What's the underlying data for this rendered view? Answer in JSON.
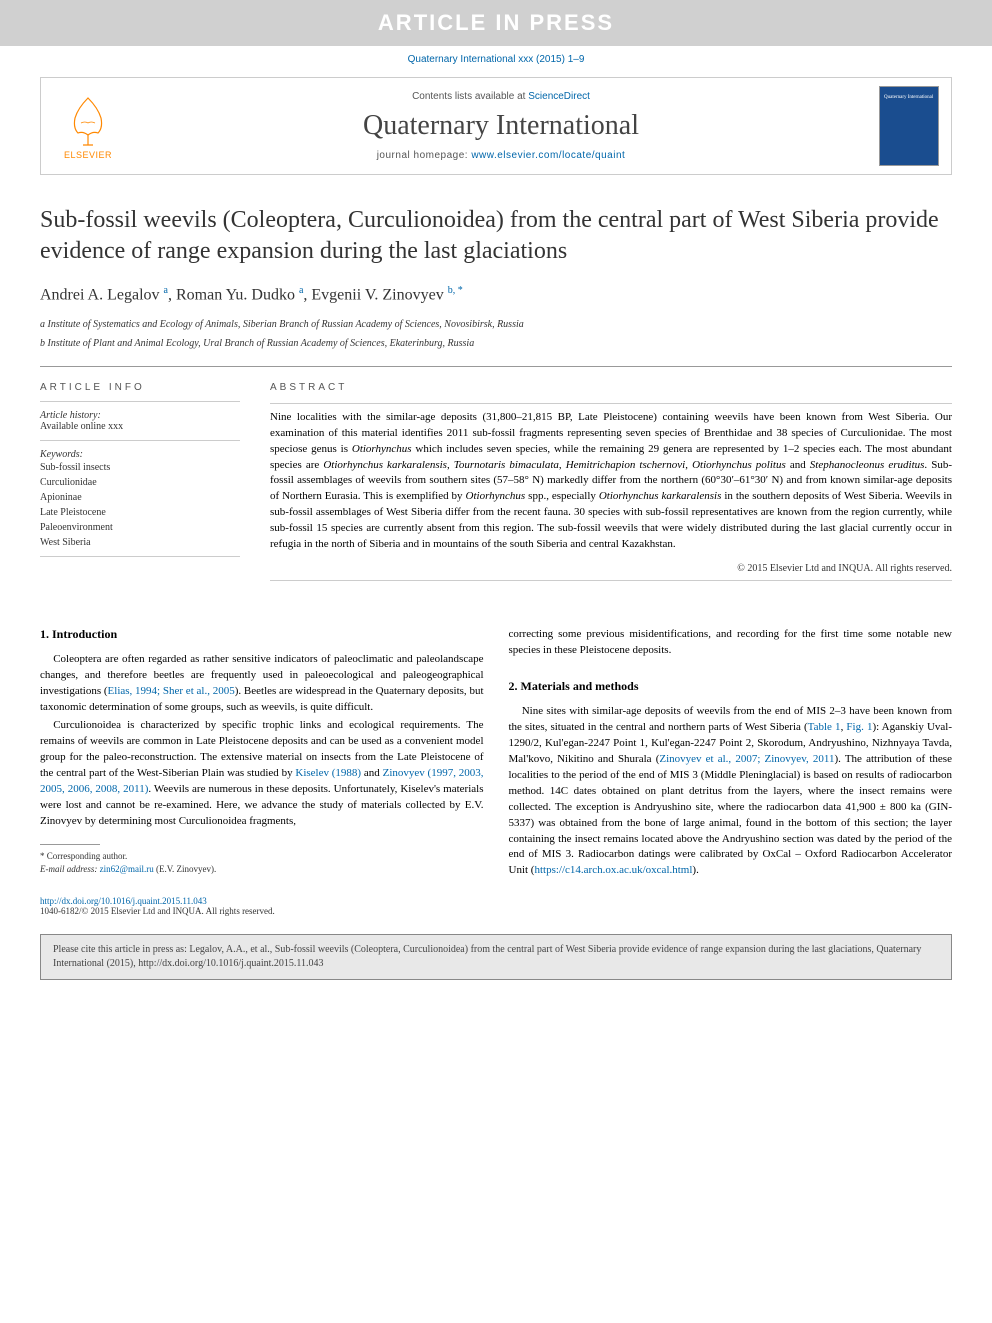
{
  "banner": "ARTICLE IN PRESS",
  "journal_ref": "Quaternary International xxx (2015) 1–9",
  "header": {
    "contents_prefix": "Contents lists available at ",
    "contents_link": "ScienceDirect",
    "journal_name": "Quaternary International",
    "homepage_prefix": "journal homepage: ",
    "homepage_url": "www.elsevier.com/locate/quaint",
    "publisher": "ELSEVIER"
  },
  "article": {
    "title": "Sub-fossil weevils (Coleoptera, Curculionoidea) from the central part of West Siberia provide evidence of range expansion during the last glaciations",
    "authors_html": "Andrei A. Legalov <sup>a</sup>, Roman Yu. Dudko <sup>a</sup>, Evgenii V. Zinovyev <sup>b, *</sup>",
    "affiliations": [
      "a Institute of Systematics and Ecology of Animals, Siberian Branch of Russian Academy of Sciences, Novosibirsk, Russia",
      "b Institute of Plant and Animal Ecology, Ural Branch of Russian Academy of Sciences, Ekaterinburg, Russia"
    ]
  },
  "info": {
    "header": "ARTICLE INFO",
    "history_label": "Article history:",
    "history_text": "Available online xxx",
    "keywords_label": "Keywords:",
    "keywords": [
      "Sub-fossil insects",
      "Curculionidae",
      "Apioninae",
      "Late Pleistocene",
      "Paleoenvironment",
      "West Siberia"
    ]
  },
  "abstract": {
    "header": "ABSTRACT",
    "text": "Nine localities with the similar-age deposits (31,800–21,815 BP, Late Pleistocene) containing weevils have been known from West Siberia. Our examination of this material identifies 2011 sub-fossil fragments representing seven species of Brenthidae and 38 species of Curculionidae. The most speciose genus is Otiorhynchus which includes seven species, while the remaining 29 genera are represented by 1–2 species each. The most abundant species are Otiorhynchus karkaralensis, Tournotaris bimaculata, Hemitrichapion tschernovi, Otiorhynchus politus and Stephanocleonus eruditus. Sub-fossil assemblages of weevils from southern sites (57–58° N) markedly differ from the northern (60°30′–61°30′ N) and from known similar-age deposits of Northern Eurasia. This is exemplified by Otiorhynchus spp., especially Otiorhynchus karkaralensis in the southern deposits of West Siberia. Weevils in sub-fossil assemblages of West Siberia differ from the recent fauna. 30 species with sub-fossil representatives are known from the region currently, while sub-fossil 15 species are currently absent from this region. The sub-fossil weevils that were widely distributed during the last glacial currently occur in refugia in the north of Siberia and in mountains of the south Siberia and central Kazakhstan.",
    "copyright": "© 2015 Elsevier Ltd and INQUA. All rights reserved."
  },
  "sections": {
    "intro_head": "1. Introduction",
    "intro_p1_a": "Coleoptera are often regarded as rather sensitive indicators of paleoclimatic and paleolandscape changes, and therefore beetles are frequently used in paleoecological and paleogeographical investigations (",
    "intro_p1_ref": "Elias, 1994; Sher et al., 2005",
    "intro_p1_b": "). Beetles are widespread in the Quaternary deposits, but taxonomic determination of some groups, such as weevils, is quite difficult.",
    "intro_p2_a": "Curculionoidea is characterized by specific trophic links and ecological requirements. The remains of weevils are common in Late Pleistocene deposits and can be used as a convenient model group for the paleo-reconstruction. The extensive material on insects from the Late Pleistocene of the central part of the West-Siberian Plain was studied by ",
    "intro_p2_ref1": "Kiselev (1988)",
    "intro_p2_mid": " and ",
    "intro_p2_ref2": "Zinovyev (1997, 2003, 2005, 2006, 2008, 2011)",
    "intro_p2_b": ". Weevils are numerous in these deposits. Unfortunately, Kiselev's materials were lost and cannot be re-examined. Here, we advance the study of materials collected by E.V. Zinovyev by determining most Curculionoidea fragments, ",
    "intro_p2_cont": "correcting some previous misidentifications, and recording for the first time some notable new species in these Pleistocene deposits.",
    "methods_head": "2. Materials and methods",
    "methods_p1_a": "Nine sites with similar-age deposits of weevils from the end of MIS 2–3 have been known from the sites, situated in the central and northern parts of West Siberia (",
    "methods_p1_ref1": "Table 1",
    "methods_p1_mid1": ", ",
    "methods_p1_ref2": "Fig. 1",
    "methods_p1_b": "): Aganskiy Uval-1290/2, Kul'egan-2247 Point 1, Kul'egan-2247 Point 2, Skorodum, Andryushino, Nizhnyaya Tavda, Mal'kovo, Nikitino and Shurala (",
    "methods_p1_ref3": "Zinovyev et al., 2007; Zinovyev, 2011",
    "methods_p1_c": "). The attribution of these localities to the period of the end of MIS 3 (Middle Pleninglacial) is based on results of radiocarbon method. 14C dates obtained on plant detritus from the layers, where the insect remains were collected. The exception is Andryushino site, where the radiocarbon data 41,900 ± 800 ka (GIN-5337) was obtained from the bone of large animal, found in the bottom of this section; the layer containing the insect remains located above the Andryushino section was dated by the period of the end of MIS 3. Radiocarbon datings were calibrated by OxCal – Oxford Radiocarbon Accelerator Unit (",
    "methods_p1_ref4": "https://c14.arch.ox.ac.uk/oxcal.html",
    "methods_p1_d": ")."
  },
  "footnote": {
    "corr": "* Corresponding author.",
    "email_label": "E-mail address: ",
    "email": "zin62@mail.ru",
    "email_suffix": " (E.V. Zinovyev)."
  },
  "doi": {
    "url": "http://dx.doi.org/10.1016/j.quaint.2015.11.043",
    "issn": "1040-6182/© 2015 Elsevier Ltd and INQUA. All rights reserved."
  },
  "cite_box": "Please cite this article in press as: Legalov, A.A., et al., Sub-fossil weevils (Coleoptera, Curculionoidea) from the central part of West Siberia provide evidence of range expansion during the last glaciations, Quaternary International (2015), http://dx.doi.org/10.1016/j.quaint.2015.11.043",
  "colors": {
    "banner_bg": "#d0d0d0",
    "banner_fg": "#ffffff",
    "link": "#0066aa",
    "elsevier_orange": "#ff8800",
    "cover_bg": "#1a4d8f",
    "cite_bg": "#e8e8e8"
  }
}
